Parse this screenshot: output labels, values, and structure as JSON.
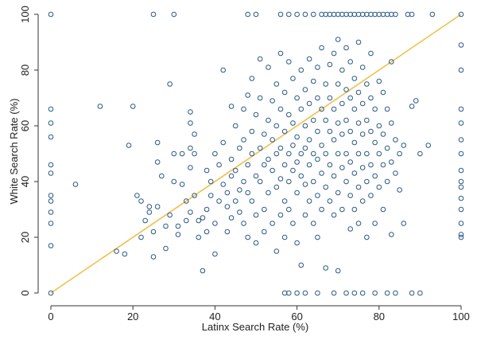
{
  "chart_data": {
    "type": "scatter",
    "xlabel": "Latinx Search Rate (%)",
    "ylabel": "White Search Rate (%)",
    "xlim": [
      0,
      100
    ],
    "ylim": [
      0,
      100
    ],
    "xticks": [
      0,
      20,
      40,
      60,
      80,
      100
    ],
    "yticks": [
      0,
      20,
      40,
      60,
      80,
      100
    ],
    "grid": false,
    "reference_line": {
      "from": [
        0,
        0
      ],
      "to": [
        100,
        100
      ],
      "color": "#f0c04a"
    },
    "marker_color": "#2b5a86",
    "series": [
      {
        "points": [
          [
            0,
            100
          ],
          [
            0,
            66
          ],
          [
            0,
            61
          ],
          [
            0,
            56
          ],
          [
            0,
            46
          ],
          [
            0,
            43
          ],
          [
            0,
            35
          ],
          [
            0,
            33
          ],
          [
            0,
            29
          ],
          [
            0,
            25
          ],
          [
            0,
            17
          ],
          [
            0,
            0
          ],
          [
            6,
            39
          ],
          [
            12,
            67
          ],
          [
            16,
            15
          ],
          [
            18,
            14
          ],
          [
            19,
            53
          ],
          [
            20,
            67
          ],
          [
            21,
            35
          ],
          [
            22,
            33
          ],
          [
            22,
            20
          ],
          [
            23,
            26
          ],
          [
            24,
            29
          ],
          [
            24,
            31
          ],
          [
            25,
            22
          ],
          [
            25,
            13
          ],
          [
            26,
            47
          ],
          [
            26,
            54
          ],
          [
            26,
            31
          ],
          [
            27,
            42
          ],
          [
            28,
            16
          ],
          [
            28,
            24
          ],
          [
            29,
            75
          ],
          [
            29,
            28
          ],
          [
            30,
            40
          ],
          [
            30,
            50
          ],
          [
            31,
            21
          ],
          [
            31,
            24
          ],
          [
            32,
            39
          ],
          [
            32,
            50
          ],
          [
            33,
            26
          ],
          [
            33,
            33
          ],
          [
            34,
            61
          ],
          [
            34,
            65
          ],
          [
            34,
            52
          ],
          [
            34,
            45
          ],
          [
            34,
            29
          ],
          [
            35,
            35
          ],
          [
            35,
            50
          ],
          [
            35,
            57
          ],
          [
            36,
            20
          ],
          [
            36,
            26
          ],
          [
            37,
            8
          ],
          [
            37,
            27
          ],
          [
            38,
            44
          ],
          [
            38,
            30
          ],
          [
            38,
            22
          ],
          [
            39,
            40
          ],
          [
            39,
            35
          ],
          [
            40,
            50
          ],
          [
            40,
            25
          ],
          [
            40,
            14
          ],
          [
            41,
            33
          ],
          [
            41,
            46
          ],
          [
            42,
            80
          ],
          [
            42,
            54
          ],
          [
            42,
            39
          ],
          [
            43,
            36
          ],
          [
            43,
            31
          ],
          [
            43,
            22
          ],
          [
            44,
            48
          ],
          [
            44,
            67
          ],
          [
            44,
            42
          ],
          [
            44,
            27
          ],
          [
            45,
            60
          ],
          [
            45,
            44
          ],
          [
            45,
            33
          ],
          [
            46,
            37
          ],
          [
            46,
            29
          ],
          [
            46,
            52
          ],
          [
            47,
            66
          ],
          [
            47,
            55
          ],
          [
            47,
            40
          ],
          [
            47,
            25
          ],
          [
            48,
            71
          ],
          [
            48,
            46
          ],
          [
            48,
            36
          ],
          [
            48,
            20
          ],
          [
            49,
            77
          ],
          [
            49,
            58
          ],
          [
            49,
            50
          ],
          [
            49,
            33
          ],
          [
            50,
            64
          ],
          [
            50,
            42
          ],
          [
            50,
            28
          ],
          [
            50,
            18
          ],
          [
            51,
            84
          ],
          [
            51,
            70
          ],
          [
            51,
            52
          ],
          [
            51,
            40
          ],
          [
            52,
            57
          ],
          [
            52,
            46
          ],
          [
            52,
            30
          ],
          [
            52,
            22
          ],
          [
            53,
            81
          ],
          [
            53,
            62
          ],
          [
            53,
            48
          ],
          [
            53,
            36
          ],
          [
            54,
            69
          ],
          [
            54,
            55
          ],
          [
            54,
            44
          ],
          [
            54,
            25
          ],
          [
            55,
            75
          ],
          [
            55,
            60
          ],
          [
            55,
            50
          ],
          [
            55,
            38
          ],
          [
            55,
            15
          ],
          [
            56,
            86
          ],
          [
            56,
            66
          ],
          [
            56,
            52
          ],
          [
            56,
            41
          ],
          [
            56,
            28
          ],
          [
            57,
            72
          ],
          [
            57,
            58
          ],
          [
            57,
            46
          ],
          [
            57,
            33
          ],
          [
            57,
            20
          ],
          [
            58,
            83
          ],
          [
            58,
            64
          ],
          [
            58,
            50
          ],
          [
            58,
            40
          ],
          [
            58,
            30
          ],
          [
            59,
            77
          ],
          [
            59,
            61
          ],
          [
            59,
            53
          ],
          [
            59,
            44
          ],
          [
            59,
            25
          ],
          [
            60,
            70
          ],
          [
            60,
            56
          ],
          [
            60,
            47
          ],
          [
            60,
            36
          ],
          [
            60,
            18
          ],
          [
            61,
            80
          ],
          [
            61,
            66
          ],
          [
            61,
            50
          ],
          [
            61,
            42
          ],
          [
            61,
            10
          ],
          [
            62,
            73
          ],
          [
            62,
            60
          ],
          [
            62,
            52
          ],
          [
            62,
            39
          ],
          [
            62,
            28
          ],
          [
            63,
            84
          ],
          [
            63,
            68
          ],
          [
            63,
            55
          ],
          [
            63,
            46
          ],
          [
            63,
            33
          ],
          [
            64,
            76
          ],
          [
            64,
            62
          ],
          [
            64,
            50
          ],
          [
            64,
            40
          ],
          [
            64,
            25
          ],
          [
            65,
            81
          ],
          [
            65,
            70
          ],
          [
            65,
            58
          ],
          [
            65,
            48
          ],
          [
            65,
            35
          ],
          [
            65,
            20
          ],
          [
            66,
            88
          ],
          [
            66,
            66
          ],
          [
            66,
            53
          ],
          [
            66,
            43
          ],
          [
            66,
            30
          ],
          [
            67,
            75
          ],
          [
            67,
            62
          ],
          [
            67,
            50
          ],
          [
            67,
            38
          ],
          [
            67,
            9
          ],
          [
            68,
            82
          ],
          [
            68,
            70
          ],
          [
            68,
            58
          ],
          [
            68,
            46
          ],
          [
            68,
            33
          ],
          [
            69,
            86
          ],
          [
            69,
            66
          ],
          [
            69,
            55
          ],
          [
            69,
            42
          ],
          [
            69,
            28
          ],
          [
            70,
            91
          ],
          [
            70,
            75
          ],
          [
            70,
            61
          ],
          [
            70,
            50
          ],
          [
            70,
            36
          ],
          [
            70,
            8
          ],
          [
            71,
            80
          ],
          [
            71,
            68
          ],
          [
            71,
            57
          ],
          [
            71,
            45
          ],
          [
            71,
            30
          ],
          [
            72,
            88
          ],
          [
            72,
            73
          ],
          [
            72,
            62
          ],
          [
            72,
            50
          ],
          [
            72,
            40
          ],
          [
            73,
            83
          ],
          [
            73,
            70
          ],
          [
            73,
            58
          ],
          [
            73,
            47
          ],
          [
            73,
            35
          ],
          [
            73,
            23
          ],
          [
            74,
            77
          ],
          [
            74,
            66
          ],
          [
            74,
            54
          ],
          [
            74,
            43
          ],
          [
            74,
            30
          ],
          [
            75,
            90
          ],
          [
            75,
            72
          ],
          [
            75,
            61
          ],
          [
            75,
            50
          ],
          [
            75,
            38
          ],
          [
            75,
            25
          ],
          [
            76,
            81
          ],
          [
            76,
            68
          ],
          [
            76,
            57
          ],
          [
            76,
            45
          ],
          [
            76,
            33
          ],
          [
            77,
            75
          ],
          [
            77,
            62
          ],
          [
            77,
            50
          ],
          [
            77,
            40
          ],
          [
            77,
            20
          ],
          [
            78,
            86
          ],
          [
            78,
            70
          ],
          [
            78,
            58
          ],
          [
            78,
            46
          ],
          [
            78,
            35
          ],
          [
            79,
            66
          ],
          [
            79,
            54
          ],
          [
            79,
            42
          ],
          [
            79,
            25
          ],
          [
            80,
            76
          ],
          [
            80,
            60
          ],
          [
            80,
            50
          ],
          [
            80,
            38
          ],
          [
            81,
            72
          ],
          [
            81,
            57
          ],
          [
            81,
            46
          ],
          [
            81,
            30
          ],
          [
            82,
            66
          ],
          [
            82,
            52
          ],
          [
            82,
            40
          ],
          [
            83,
            83
          ],
          [
            83,
            61
          ],
          [
            83,
            47
          ],
          [
            83,
            21
          ],
          [
            84,
            55
          ],
          [
            84,
            43
          ],
          [
            85,
            50
          ],
          [
            85,
            37
          ],
          [
            86,
            53
          ],
          [
            86,
            25
          ],
          [
            88,
            67
          ],
          [
            89,
            69
          ],
          [
            90,
            50
          ],
          [
            92,
            53
          ],
          [
            100,
            89
          ],
          [
            100,
            80
          ],
          [
            100,
            66
          ],
          [
            100,
            61
          ],
          [
            100,
            55
          ],
          [
            100,
            50
          ],
          [
            100,
            44
          ],
          [
            100,
            40
          ],
          [
            100,
            38
          ],
          [
            100,
            34
          ],
          [
            100,
            30
          ],
          [
            100,
            25
          ],
          [
            100,
            21
          ],
          [
            100,
            20
          ],
          [
            25,
            100
          ],
          [
            30,
            100
          ],
          [
            48,
            100
          ],
          [
            50,
            100
          ],
          [
            56,
            100
          ],
          [
            58,
            100
          ],
          [
            60,
            100
          ],
          [
            62,
            100
          ],
          [
            64,
            100
          ],
          [
            66,
            100
          ],
          [
            67,
            100
          ],
          [
            68,
            100
          ],
          [
            69,
            100
          ],
          [
            70,
            100
          ],
          [
            71,
            100
          ],
          [
            72,
            100
          ],
          [
            73,
            100
          ],
          [
            74,
            100
          ],
          [
            75,
            100
          ],
          [
            76,
            100
          ],
          [
            77,
            100
          ],
          [
            78,
            100
          ],
          [
            79,
            100
          ],
          [
            80,
            100
          ],
          [
            81,
            100
          ],
          [
            82,
            100
          ],
          [
            83,
            100
          ],
          [
            84,
            100
          ],
          [
            87,
            100
          ],
          [
            88,
            100
          ],
          [
            93,
            100
          ],
          [
            100,
            100
          ],
          [
            57,
            0
          ],
          [
            58,
            0
          ],
          [
            60,
            0
          ],
          [
            62,
            0
          ],
          [
            65,
            0
          ],
          [
            69,
            0
          ],
          [
            72,
            0
          ],
          [
            74,
            0
          ],
          [
            76,
            0
          ],
          [
            79,
            0
          ],
          [
            82,
            0
          ],
          [
            84,
            0
          ],
          [
            88,
            0
          ],
          [
            90,
            0
          ]
        ]
      }
    ]
  }
}
